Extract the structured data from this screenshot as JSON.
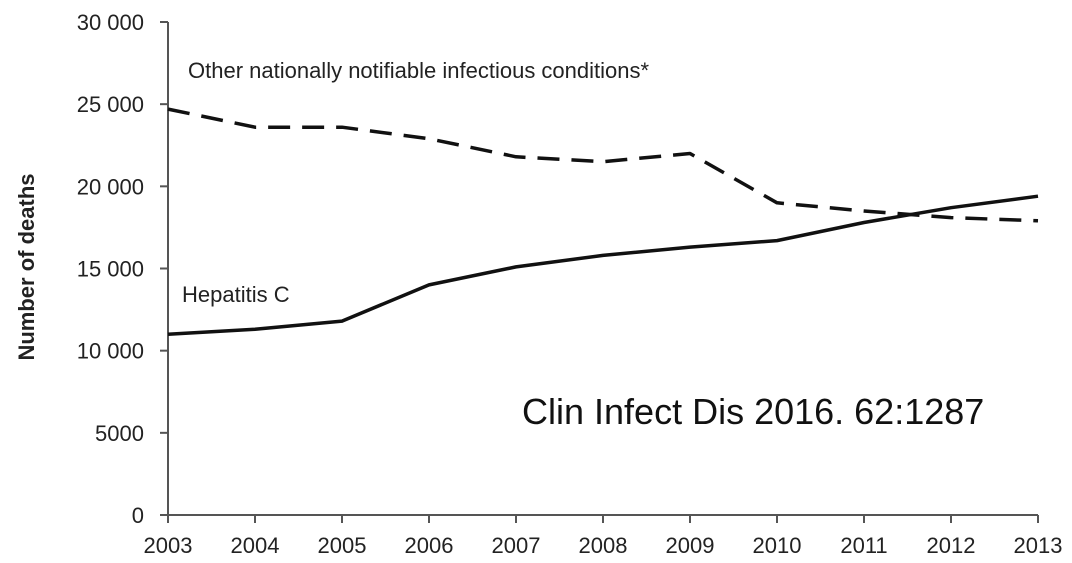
{
  "chart_data": {
    "type": "line",
    "title": "",
    "xlabel": "",
    "ylabel": "Number of deaths",
    "x": [
      2003,
      2004,
      2005,
      2006,
      2007,
      2008,
      2009,
      2010,
      2011,
      2012,
      2013
    ],
    "x_tick_labels": [
      "2003",
      "2004",
      "2005",
      "2006",
      "2007",
      "2008",
      "2009",
      "2010",
      "2011",
      "2012",
      "2013"
    ],
    "ylim": [
      0,
      30000
    ],
    "y_ticks": [
      0,
      5000,
      10000,
      15000,
      20000,
      25000,
      30000
    ],
    "y_tick_labels": [
      "0",
      "5000",
      "10 000",
      "15 000",
      "20 000",
      "25 000",
      "30 000"
    ],
    "grid": false,
    "series": [
      {
        "name": "Hepatitis C",
        "line_style": "solid",
        "color": "#111111",
        "values": [
          11000,
          11300,
          11800,
          14000,
          15100,
          15800,
          16300,
          16700,
          17800,
          18700,
          19400
        ]
      },
      {
        "name": "Other nationally notifiable infectious conditions*",
        "line_style": "dashed",
        "color": "#111111",
        "values": [
          24700,
          23600,
          23600,
          22900,
          21800,
          21500,
          22000,
          19000,
          18500,
          18100,
          17900
        ]
      }
    ],
    "annotations": [
      "Clin Infect Dis 2016. 62:1287"
    ]
  }
}
